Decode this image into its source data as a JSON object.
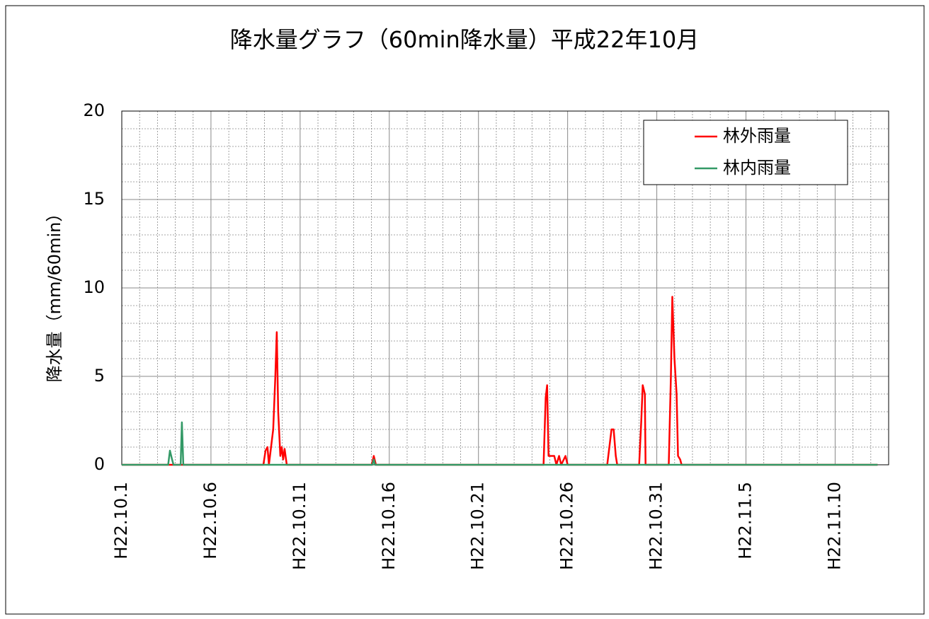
{
  "chart_data": {
    "type": "line",
    "title": "降水量グラフ（60min降水量）平成22年10月",
    "y_label": "降水量（mm/60min）",
    "xlim": [
      0,
      43
    ],
    "xticks": [
      {
        "value": 0,
        "label": "H22.10.1"
      },
      {
        "value": 5,
        "label": "H22.10.6"
      },
      {
        "value": 10,
        "label": "H22.10.11"
      },
      {
        "value": 15,
        "label": "H22.10.16"
      },
      {
        "value": 20,
        "label": "H22.10.21"
      },
      {
        "value": 25,
        "label": "H22.10.26"
      },
      {
        "value": 30,
        "label": "H22.10.31"
      },
      {
        "value": 35,
        "label": "H22.11.5"
      },
      {
        "value": 40,
        "label": "H22.11.10"
      }
    ],
    "ylim": [
      0,
      20
    ],
    "yticks": [
      0,
      5,
      10,
      15,
      20
    ],
    "grid": true,
    "legend": "upper-right",
    "series": [
      {
        "name": "林外雨量",
        "color": "#ff0000",
        "x": [
          0,
          7.94,
          8.06,
          8.17,
          8.25,
          8.49,
          8.61,
          8.69,
          8.77,
          8.89,
          8.97,
          9.05,
          9.13,
          9.25,
          14.01,
          14.13,
          14.25,
          23.65,
          23.77,
          23.85,
          23.93,
          24.05,
          24.25,
          24.37,
          24.52,
          24.64,
          24.88,
          25,
          27.22,
          27.34,
          27.46,
          27.58,
          27.7,
          27.78,
          29.01,
          29.13,
          29.21,
          29.33,
          29.37,
          30.67,
          30.79,
          30.87,
          30.99,
          31.11,
          31.19,
          31.31,
          31.39,
          42.38
        ],
        "values": [
          0,
          0,
          0.8,
          1,
          0,
          2,
          5,
          7.5,
          3,
          0.5,
          1,
          0.3,
          0.9,
          0,
          0,
          0.5,
          0,
          0,
          3.8,
          4.5,
          0.5,
          0.5,
          0.5,
          0,
          0.5,
          0,
          0.5,
          0,
          0,
          1,
          2,
          2,
          0.5,
          0,
          0,
          2.5,
          4.5,
          4,
          0,
          0,
          5,
          9.5,
          6,
          4,
          0.5,
          0.3,
          0,
          0
        ]
      },
      {
        "name": "林内雨量",
        "color": "#339966",
        "x": [
          0,
          2.6,
          2.7,
          2.82,
          2.9,
          3.3,
          3.37,
          3.45,
          14.05,
          14.13,
          14.2,
          42.38
        ],
        "values": [
          0,
          0,
          0.8,
          0.3,
          0,
          0,
          2.4,
          0,
          0,
          0.3,
          0,
          0
        ]
      }
    ]
  }
}
